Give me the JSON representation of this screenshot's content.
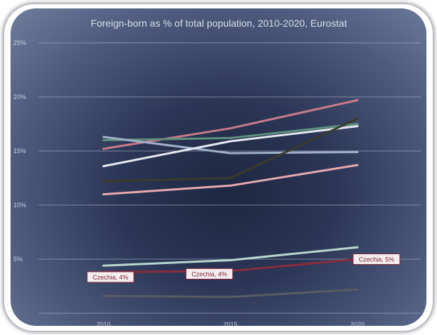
{
  "chart_data": {
    "type": "line",
    "title": "Foreign-born as % of total population, 2010-2020, Eurostat",
    "x": [
      "2010",
      "2015",
      "2020"
    ],
    "y_ticks": [
      "",
      "5%",
      "10%",
      "15%",
      "20%",
      "25%"
    ],
    "ylim": [
      0,
      25
    ],
    "grid": true,
    "series": [
      {
        "color": "#c97a8a",
        "values": [
          15.2,
          17.1,
          19.7
        ]
      },
      {
        "color": "#5f8f7e",
        "values": [
          16.0,
          16.2,
          17.5
        ]
      },
      {
        "color": "#9fb0c8",
        "values": [
          16.3,
          14.8,
          14.9
        ]
      },
      {
        "color": "#e6eaf2",
        "values": [
          13.6,
          15.9,
          17.3
        ]
      },
      {
        "color": "#3b3a2c",
        "values": [
          12.2,
          12.5,
          18.0
        ]
      },
      {
        "color": "#e7a9b0",
        "values": [
          11.0,
          11.8,
          13.7
        ]
      },
      {
        "color": "#b9d7cf",
        "values": [
          4.4,
          4.9,
          6.1
        ]
      },
      {
        "color": "#8a2c3e",
        "values": [
          3.8,
          3.9,
          5.0
        ],
        "labels": [
          "Czechia, 4%",
          "Czechia, 4%",
          "Czechia, 5%"
        ]
      },
      {
        "color": "#585c66",
        "values": [
          1.6,
          1.5,
          2.2
        ]
      }
    ]
  }
}
